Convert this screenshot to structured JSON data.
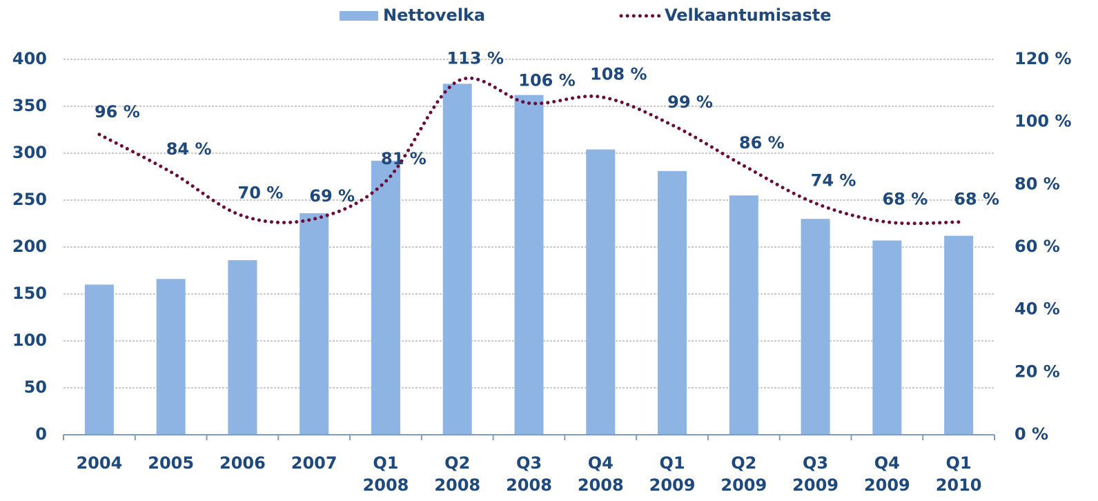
{
  "chart_data": {
    "type": "bar",
    "categories": [
      "2004",
      "2005",
      "2006",
      "2007",
      "Q1 2008",
      "Q2 2008",
      "Q3 2008",
      "Q4 2008",
      "Q1 2009",
      "Q2 2009",
      "Q3 2009",
      "Q4 2009",
      "Q1 2010"
    ],
    "series": [
      {
        "name": "Nettovelka",
        "type": "bar",
        "color": "#8eb4e3",
        "values": [
          160,
          166,
          186,
          236,
          292,
          374,
          362,
          304,
          281,
          255,
          230,
          207,
          212
        ]
      },
      {
        "name": "Velkaantumisaste",
        "type": "line",
        "axis": "y2",
        "color": "#6b0d3b",
        "style": "dotted",
        "values": [
          96,
          84,
          70,
          69,
          81,
          113,
          106,
          108,
          99,
          86,
          74,
          68,
          68
        ],
        "value_labels": [
          "96 %",
          "84 %",
          "70 %",
          "69 %",
          "81 %",
          "113 %",
          "106 %",
          "108 %",
          "99 %",
          "86 %",
          "74 %",
          "68 %",
          "68 %"
        ]
      }
    ],
    "ylim": [
      0,
      400
    ],
    "yticks": [
      0,
      50,
      100,
      150,
      200,
      250,
      300,
      350,
      400
    ],
    "y2lim": [
      0,
      120
    ],
    "y2ticks": [
      {
        "value": 0,
        "label": "0 %"
      },
      {
        "value": 20,
        "label": "20 %"
      },
      {
        "value": 40,
        "label": "40 %"
      },
      {
        "value": 60,
        "label": "60 %"
      },
      {
        "value": 80,
        "label": "80 %"
      },
      {
        "value": 100,
        "label": "100 %"
      },
      {
        "value": 120,
        "label": "120 %"
      }
    ],
    "grid": true,
    "legend": "top"
  }
}
